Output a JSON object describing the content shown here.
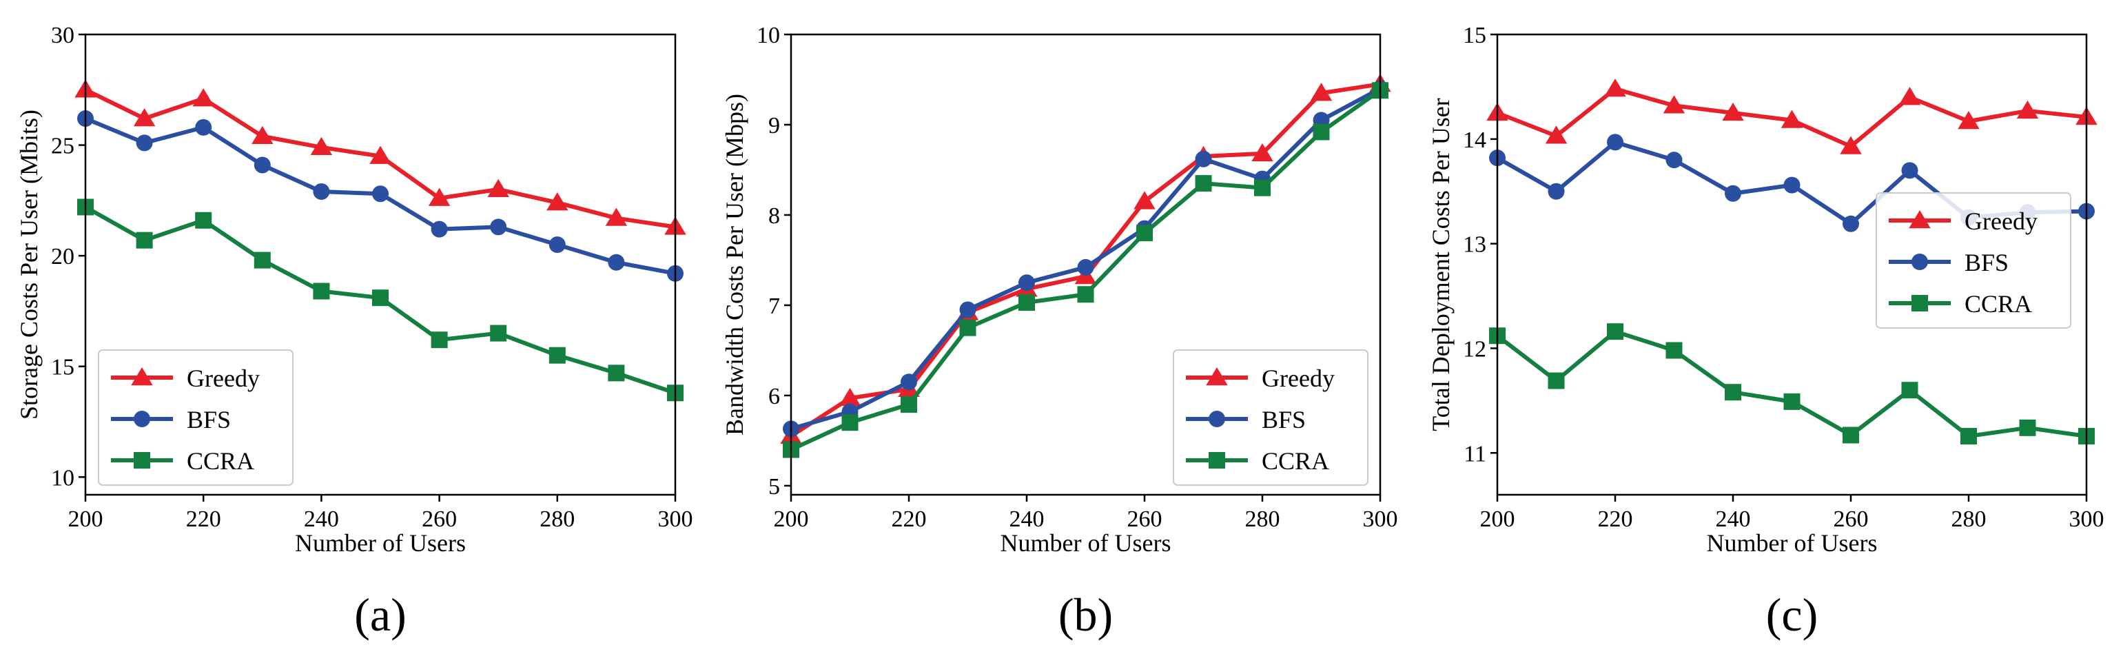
{
  "chart_data": [
    {
      "type": "line",
      "panel_label": "(a)",
      "xlabel": "Number of Users",
      "ylabel": "Storage Costs Per User (Mbits)",
      "x": [
        200,
        210,
        220,
        230,
        240,
        250,
        260,
        270,
        280,
        290,
        300
      ],
      "xlim": [
        200,
        300
      ],
      "ylim": [
        9.2,
        30
      ],
      "xticks": [
        200,
        220,
        240,
        260,
        280,
        300
      ],
      "yticks": [
        10,
        15,
        20,
        25,
        30
      ],
      "legend_position": "lower-left",
      "series": [
        {
          "name": "Greedy",
          "color": "#e8202a",
          "marker": "triangle",
          "values": [
            27.5,
            26.2,
            27.1,
            25.4,
            24.9,
            24.5,
            22.6,
            23.0,
            22.4,
            21.7,
            21.3
          ]
        },
        {
          "name": "BFS",
          "color": "#2a4ea0",
          "marker": "circle",
          "values": [
            26.2,
            25.1,
            25.8,
            24.1,
            22.9,
            22.8,
            21.2,
            21.3,
            20.5,
            19.7,
            19.2
          ]
        },
        {
          "name": "CCRA",
          "color": "#148040",
          "marker": "square",
          "values": [
            22.2,
            20.7,
            21.6,
            19.8,
            18.4,
            18.1,
            16.2,
            16.5,
            15.5,
            14.7,
            13.8
          ]
        }
      ]
    },
    {
      "type": "line",
      "panel_label": "(b)",
      "xlabel": "Number of Users",
      "ylabel": "Bandwidth Costs Per User (Mbps)",
      "x": [
        200,
        210,
        220,
        230,
        240,
        250,
        260,
        270,
        280,
        290,
        300
      ],
      "xlim": [
        200,
        300
      ],
      "ylim": [
        4.9,
        10
      ],
      "xticks": [
        200,
        220,
        240,
        260,
        280,
        300
      ],
      "yticks": [
        5,
        6,
        7,
        8,
        9,
        10
      ],
      "legend_position": "lower-right",
      "series": [
        {
          "name": "Greedy",
          "color": "#e8202a",
          "marker": "triangle",
          "values": [
            5.55,
            5.97,
            6.07,
            6.92,
            7.18,
            7.32,
            8.15,
            8.65,
            8.68,
            9.35,
            9.45
          ]
        },
        {
          "name": "BFS",
          "color": "#2a4ea0",
          "marker": "circle",
          "values": [
            5.63,
            5.82,
            6.15,
            6.95,
            7.25,
            7.42,
            7.85,
            8.62,
            8.4,
            9.05,
            9.4
          ]
        },
        {
          "name": "CCRA",
          "color": "#148040",
          "marker": "square",
          "values": [
            5.4,
            5.7,
            5.9,
            6.75,
            7.03,
            7.12,
            7.8,
            8.35,
            8.3,
            8.92,
            9.38
          ]
        }
      ]
    },
    {
      "type": "line",
      "panel_label": "(c)",
      "xlabel": "Number of Users",
      "ylabel": "Total Deployment Costs Per User",
      "x": [
        200,
        210,
        220,
        230,
        240,
        250,
        260,
        270,
        280,
        290,
        300
      ],
      "xlim": [
        200,
        300
      ],
      "ylim": [
        10.6,
        15
      ],
      "xticks": [
        200,
        220,
        240,
        260,
        280,
        300
      ],
      "yticks": [
        11,
        12,
        13,
        14,
        15
      ],
      "legend_position": "center-right",
      "series": [
        {
          "name": "Greedy",
          "color": "#e8202a",
          "marker": "triangle",
          "values": [
            14.25,
            14.03,
            14.48,
            14.32,
            14.25,
            14.18,
            13.93,
            14.4,
            14.17,
            14.27,
            14.21
          ]
        },
        {
          "name": "BFS",
          "color": "#2a4ea0",
          "marker": "circle",
          "values": [
            13.82,
            13.5,
            13.97,
            13.8,
            13.48,
            13.56,
            13.19,
            13.7,
            13.25,
            13.3,
            13.31
          ]
        },
        {
          "name": "CCRA",
          "color": "#148040",
          "marker": "square",
          "values": [
            12.12,
            11.69,
            12.16,
            11.98,
            11.58,
            11.49,
            11.17,
            11.6,
            11.16,
            11.24,
            11.16
          ]
        }
      ]
    }
  ]
}
